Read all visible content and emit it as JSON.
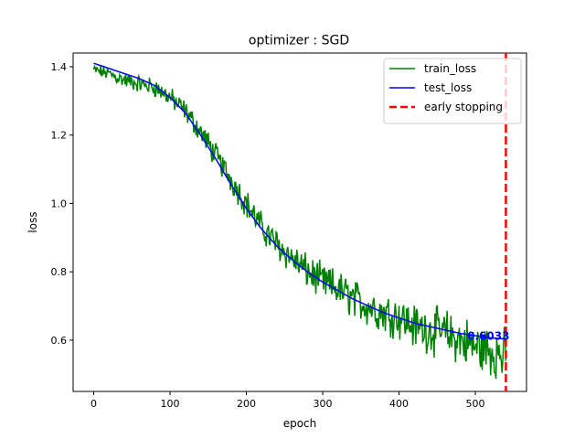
{
  "chart_data": {
    "type": "line",
    "title": "optimizer : SGD",
    "xlabel": "epoch",
    "ylabel": "loss",
    "xlim": [
      -27,
      567
    ],
    "ylim": [
      0.45,
      1.44
    ],
    "x_ticks": [
      0,
      100,
      200,
      300,
      400,
      500
    ],
    "y_ticks": [
      0.6,
      0.8,
      1.0,
      1.2,
      1.4
    ],
    "grid": false,
    "legend_position": "top-right",
    "series": [
      {
        "name": "train_loss",
        "color": "#008000",
        "style": "solid",
        "x": [
          0,
          20,
          40,
          60,
          80,
          100,
          120,
          140,
          160,
          180,
          200,
          220,
          240,
          260,
          280,
          300,
          320,
          340,
          360,
          380,
          400,
          420,
          440,
          460,
          480,
          500,
          520,
          540
        ],
        "y": [
          1.39,
          1.38,
          1.36,
          1.35,
          1.34,
          1.31,
          1.27,
          1.21,
          1.14,
          1.07,
          1.0,
          0.93,
          0.88,
          0.84,
          0.8,
          0.77,
          0.75,
          0.72,
          0.7,
          0.68,
          0.67,
          0.64,
          0.63,
          0.62,
          0.6,
          0.58,
          0.57,
          0.55
        ],
        "noise": 0.03
      },
      {
        "name": "test_loss",
        "color": "#0000ff",
        "style": "solid",
        "x": [
          0,
          20,
          40,
          60,
          80,
          100,
          120,
          140,
          160,
          180,
          200,
          220,
          240,
          260,
          280,
          300,
          320,
          340,
          360,
          380,
          400,
          420,
          440,
          460,
          480,
          500,
          520,
          540
        ],
        "y": [
          1.41,
          1.395,
          1.38,
          1.365,
          1.345,
          1.31,
          1.265,
          1.2,
          1.13,
          1.055,
          0.985,
          0.925,
          0.875,
          0.835,
          0.8,
          0.77,
          0.745,
          0.72,
          0.7,
          0.68,
          0.665,
          0.65,
          0.64,
          0.63,
          0.62,
          0.613,
          0.607,
          0.6033
        ]
      }
    ],
    "vlines": [
      {
        "name": "early stopping",
        "x": 540,
        "color": "#ff0000",
        "style": "dashed"
      }
    ],
    "annotations": [
      {
        "text": "0.6033",
        "x": 540,
        "y": 0.6033,
        "color": "#0000ff"
      }
    ]
  }
}
